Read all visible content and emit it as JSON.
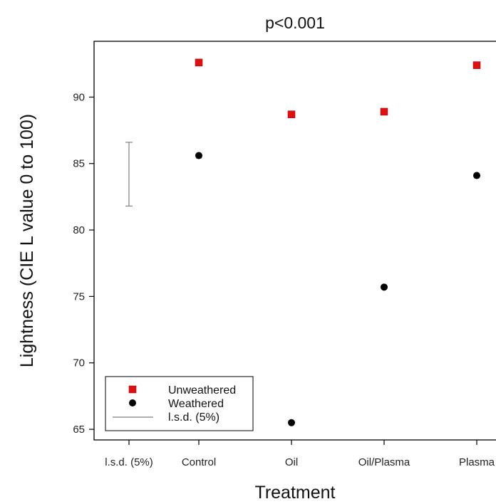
{
  "chart_data": {
    "type": "scatter",
    "title": "p<0.001",
    "xlabel": "Treatment",
    "ylabel": "Lightness (CIE L value 0 to 100)",
    "categories": [
      "l.s.d. (5%)",
      "Control",
      "Oil",
      "Oil/Plasma",
      "Plasma"
    ],
    "ylim": [
      64.2,
      94.2
    ],
    "yticks": [
      65,
      70,
      75,
      80,
      85,
      90
    ],
    "series": [
      {
        "name": "Unweathered",
        "marker": "square",
        "color": "#e01010",
        "points": [
          {
            "x": "Control",
            "y": 92.6
          },
          {
            "x": "Oil",
            "y": 88.7
          },
          {
            "x": "Oil/Plasma",
            "y": 88.9
          },
          {
            "x": "Plasma",
            "y": 92.4
          }
        ]
      },
      {
        "name": "Weathered",
        "marker": "circle",
        "color": "#000000",
        "points": [
          {
            "x": "Control",
            "y": 85.6
          },
          {
            "x": "Oil",
            "y": 65.5
          },
          {
            "x": "Oil/Plasma",
            "y": 75.7
          },
          {
            "x": "Plasma",
            "y": 84.1
          }
        ]
      }
    ],
    "lsd": {
      "name": "l.s.d. (5%)",
      "x": "l.s.d. (5%)",
      "low": 81.8,
      "high": 86.6,
      "color": "#808080"
    },
    "legend": {
      "placement": "bottom-left",
      "entries": [
        "Unweathered",
        "Weathered",
        "l.s.d. (5%)"
      ]
    },
    "grid": false
  }
}
